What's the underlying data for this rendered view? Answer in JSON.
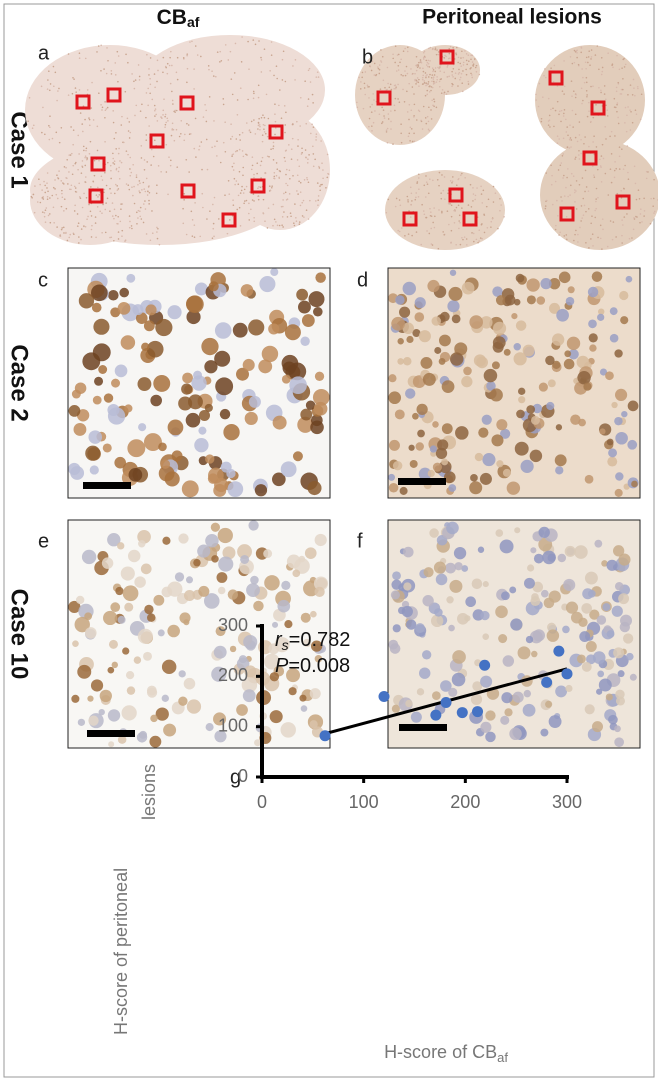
{
  "header": {
    "left": {
      "text": "CB",
      "sub": "af"
    },
    "right": "Peritoneal lesions"
  },
  "rows": [
    "Case 1",
    "Case 2",
    "Case 10"
  ],
  "panels": [
    "a",
    "b",
    "c",
    "d",
    "e",
    "f",
    "g"
  ],
  "chart_data": {
    "type": "scatter",
    "x_label": {
      "text": "H-score of CB",
      "sub": "af"
    },
    "y_label": [
      "H-score of peritoneal",
      "lesions"
    ],
    "annotations": [
      {
        "symbol": "r",
        "sub": "s",
        "text": "=0.782"
      },
      {
        "symbol": "P",
        "text": "=0.008"
      }
    ],
    "x": [
      62,
      120,
      171,
      181,
      197,
      212,
      219,
      280,
      292,
      300
    ],
    "values": [
      82,
      160,
      123,
      148,
      128,
      130,
      222,
      188,
      250,
      205
    ],
    "color": "#4472c4",
    "trendline": {
      "x": [
        62,
        300
      ],
      "y": [
        86,
        215
      ],
      "color": "#000000"
    },
    "xlim": [
      0,
      300
    ],
    "ylim": [
      0,
      300
    ],
    "xticks": [
      0,
      100,
      200,
      300
    ],
    "yticks": [
      0,
      100,
      200,
      300
    ]
  }
}
